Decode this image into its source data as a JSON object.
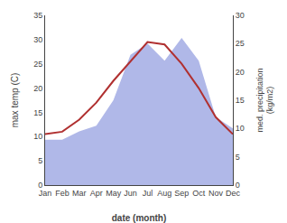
{
  "chart_data": {
    "type": "line",
    "categories": [
      "Jan",
      "Feb",
      "Mar",
      "Apr",
      "May",
      "Jun",
      "Jul",
      "Aug",
      "Sep",
      "Oct",
      "Nov",
      "Dec"
    ],
    "series": [
      {
        "type": "area",
        "color": "#b0b8e8",
        "axis": "y2",
        "values": [
          8.0,
          8.0,
          9.5,
          10.5,
          15.0,
          23.0,
          25.0,
          22.0,
          26.0,
          22.0,
          12.0,
          10.0
        ]
      },
      {
        "type": "line",
        "color": "#b03030",
        "values": [
          10.5,
          11.0,
          13.5,
          17.0,
          21.5,
          25.5,
          29.5,
          29.0,
          25.0,
          20.0,
          14.0,
          10.5
        ]
      }
    ],
    "xlabel": "date (month)",
    "ylabel": "max temp (C)",
    "y2label": "med. precipitation\n(kg/m2)",
    "ylim": [
      0,
      35
    ],
    "yticks": [
      0,
      5,
      10,
      15,
      20,
      25,
      30,
      35
    ],
    "y2lim": [
      0,
      30
    ],
    "y2ticks": [
      0,
      5,
      10,
      15,
      20,
      25,
      30
    ],
    "grid": false
  }
}
